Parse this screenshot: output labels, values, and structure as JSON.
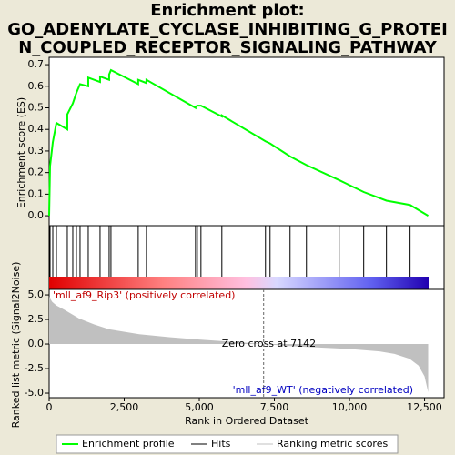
{
  "chart_data": {
    "type": "gsea",
    "title": [
      "Enrichment plot:",
      "GO_ADENYLATE_CYCLASE_INHIBITING_G_PROTEI",
      "N_COUPLED_RECEPTOR_SIGNALING_PATHWAY"
    ],
    "xlabel": "Rank in Ordered Dataset",
    "xlim": [
      0,
      13150
    ],
    "xticks": [
      0,
      {
        "value": 2500,
        "label": "2,500"
      },
      {
        "value": 5000,
        "label": "5,000"
      },
      {
        "value": 7500,
        "label": "7,500"
      },
      {
        "value": 10000,
        "label": "10,000"
      },
      {
        "value": 12500,
        "label": "12,500"
      }
    ],
    "es": {
      "ylabel": "Enrichment score (ES)",
      "color": "#00ff00",
      "ylim": [
        -0.046,
        0.734
      ],
      "yticks": [
        {
          "value": 0,
          "label": "0.0"
        },
        0.1,
        0.2,
        0.3,
        0.4,
        0.5,
        0.6,
        0.7
      ],
      "x": [
        0,
        30,
        121,
        242,
        605,
        605,
        787,
        908,
        1029,
        1302,
        1302,
        1695,
        1695,
        1998,
        1998,
        2058,
        2966,
        2966,
        3239,
        3239,
        4874,
        4874,
        4934,
        5055,
        5751,
        5751,
        7204,
        7356,
        8022,
        8567,
        9657,
        10474,
        11231,
        12018,
        12620
      ],
      "values": [
        0,
        0.23,
        0.34,
        0.43,
        0.4,
        0.47,
        0.52,
        0.57,
        0.61,
        0.6,
        0.64,
        0.62,
        0.645,
        0.63,
        0.655,
        0.675,
        0.61,
        0.63,
        0.615,
        0.63,
        0.5,
        0.505,
        0.51,
        0.51,
        0.46,
        0.465,
        0.345,
        0.335,
        0.275,
        0.235,
        0.165,
        0.11,
        0.07,
        0.05,
        0
      ]
    },
    "hits": {
      "color": "#000000",
      "x": [
        30,
        121,
        242,
        605,
        787,
        908,
        1029,
        1302,
        1695,
        1998,
        2058,
        2966,
        3239,
        4874,
        4934,
        5055,
        5751,
        7204,
        7356,
        8022,
        8567,
        9657,
        10474,
        11231,
        12018
      ]
    },
    "metric": {
      "ylabel": "Ranked list metric (Signal2Noise)",
      "color": "#c0c0c0",
      "ylim": [
        -5.46,
        5.56
      ],
      "yticks": [
        {
          "value": 5,
          "label": "5.0"
        },
        2.5,
        {
          "value": 0,
          "label": "0.0"
        },
        -2.5,
        {
          "value": -5,
          "label": "-5.0"
        }
      ],
      "x": [
        0,
        100,
        250,
        500,
        1000,
        1500,
        2000,
        3000,
        4000,
        5000,
        6000,
        7142,
        8000,
        9000,
        10000,
        11000,
        11500,
        12000,
        12300,
        12500,
        12620
      ],
      "values": [
        4.8,
        4.3,
        3.9,
        3.5,
        2.6,
        2.0,
        1.5,
        1.0,
        0.7,
        0.45,
        0.25,
        0,
        -0.2,
        -0.35,
        -0.5,
        -0.75,
        -1.0,
        -1.5,
        -2.2,
        -3.3,
        -4.9
      ],
      "zero_cross": {
        "value": 7142,
        "label": "Zero cross at 7142"
      },
      "pos_label": "'mll_af9_Rip3' (positively correlated)",
      "neg_label": "'mll_af9_WT' (negatively correlated)"
    },
    "legend": [
      "Enrichment profile",
      "Hits",
      "Ranking metric scores"
    ]
  }
}
